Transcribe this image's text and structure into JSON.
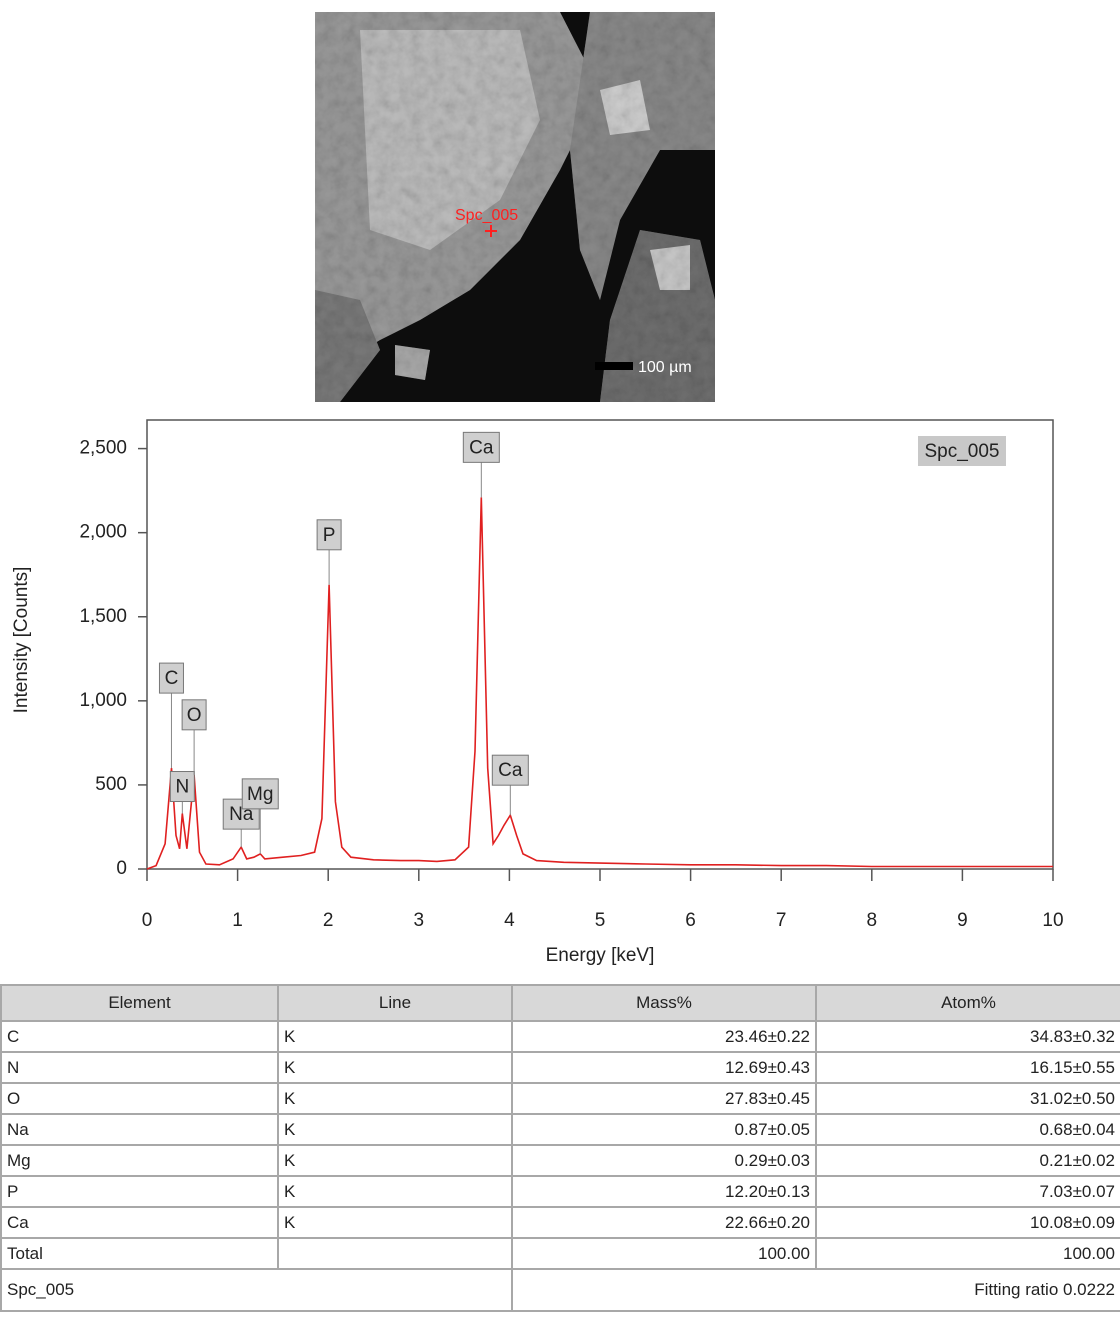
{
  "image": {
    "marker_label": "Spc_005",
    "scale_label": "100 µm"
  },
  "chart_data": {
    "type": "line",
    "xlabel": "Energy [keV]",
    "ylabel": "Intensity [Counts]",
    "x": [
      0,
      0.1,
      0.2,
      0.27,
      0.32,
      0.36,
      0.39,
      0.44,
      0.52,
      0.58,
      0.65,
      0.8,
      0.95,
      1.04,
      1.1,
      1.18,
      1.25,
      1.3,
      1.5,
      1.7,
      1.85,
      1.93,
      2.01,
      2.08,
      2.15,
      2.25,
      2.5,
      2.8,
      3.0,
      3.2,
      3.4,
      3.55,
      3.62,
      3.69,
      3.76,
      3.82,
      3.88,
      3.94,
      4.01,
      4.08,
      4.15,
      4.3,
      4.6,
      5.0,
      5.5,
      6.0,
      6.5,
      7.0,
      7.5,
      8.0,
      8.5,
      9.0,
      9.5,
      10
    ],
    "series": [
      {
        "name": "Spc_005",
        "color": "#e02020",
        "values": [
          0,
          20,
          150,
          600,
          200,
          120,
          330,
          120,
          560,
          100,
          30,
          25,
          60,
          130,
          60,
          70,
          90,
          60,
          70,
          80,
          100,
          300,
          1690,
          400,
          130,
          70,
          55,
          50,
          50,
          45,
          55,
          130,
          700,
          2210,
          600,
          150,
          200,
          260,
          320,
          200,
          90,
          50,
          40,
          35,
          30,
          25,
          25,
          20,
          20,
          15,
          15,
          15,
          15,
          15
        ]
      }
    ],
    "annotations": [
      {
        "text": "C",
        "x": 0.27,
        "y": 600
      },
      {
        "text": "N",
        "x": 0.39,
        "y": 330
      },
      {
        "text": "O",
        "x": 0.52,
        "y": 560
      },
      {
        "text": "Na",
        "x": 1.04,
        "y": 130
      },
      {
        "text": "Mg",
        "x": 1.25,
        "y": 90
      },
      {
        "text": "P",
        "x": 2.01,
        "y": 1690
      },
      {
        "text": "Ca",
        "x": 3.69,
        "y": 2210
      },
      {
        "text": "Ca",
        "x": 4.01,
        "y": 320
      }
    ],
    "xlim": [
      0,
      10
    ],
    "xticks": [
      0,
      1,
      2,
      3,
      4,
      5,
      6,
      7,
      8,
      9,
      10
    ],
    "ylim": [
      0,
      2670
    ],
    "yticks": [
      0,
      500,
      {
        "value": 1000,
        "label": "1,000"
      },
      {
        "value": 1500,
        "label": "1,500"
      },
      {
        "value": 2000,
        "label": "2,000"
      },
      {
        "value": 2500,
        "label": "2,500"
      }
    ],
    "legend": "upper right",
    "grid": false
  },
  "table": {
    "header": [
      "Element",
      "Line",
      "Mass%",
      "Atom%"
    ],
    "rows": [
      [
        "C",
        "K",
        "23.46±0.22",
        "34.83±0.32"
      ],
      [
        "N",
        "K",
        "12.69±0.43",
        "16.15±0.55"
      ],
      [
        "O",
        "K",
        "27.83±0.45",
        "31.02±0.50"
      ],
      [
        "Na",
        "K",
        "0.87±0.05",
        "0.68±0.04"
      ],
      [
        "Mg",
        "K",
        "0.29±0.03",
        "0.21±0.02"
      ],
      [
        "P",
        "K",
        "12.20±0.13",
        "7.03±0.07"
      ],
      [
        "Ca",
        "K",
        "22.66±0.20",
        "10.08±0.09"
      ],
      [
        "Total",
        "",
        "100.00",
        "100.00"
      ]
    ],
    "footer": {
      "left": "Spc_005",
      "right": "Fitting ratio 0.0222"
    }
  }
}
